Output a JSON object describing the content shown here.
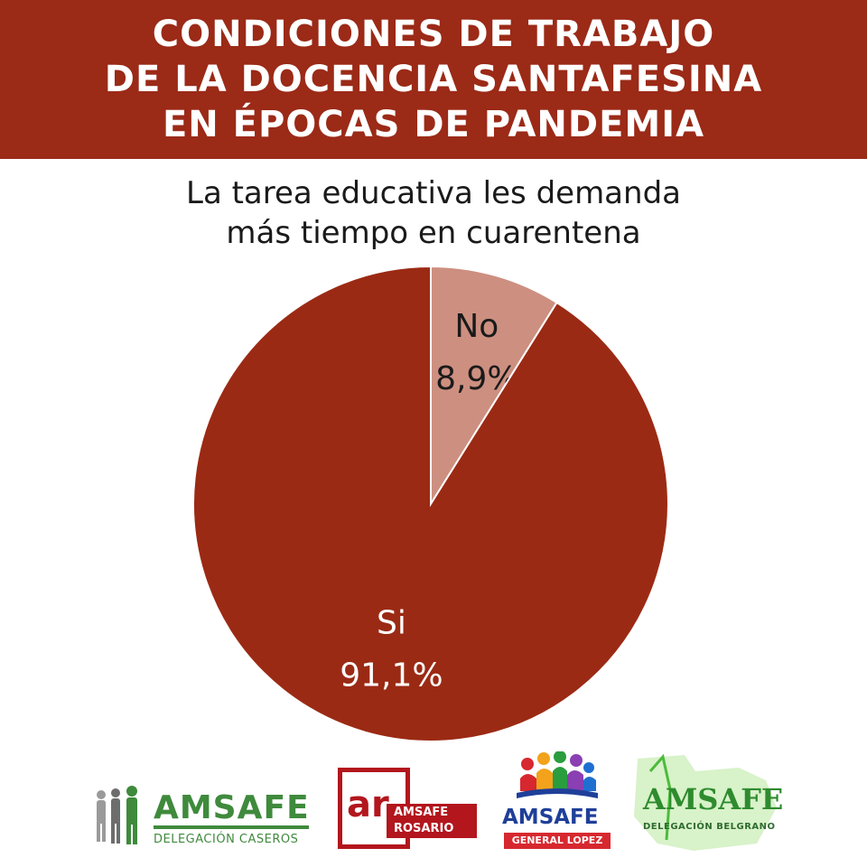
{
  "header": {
    "lines": [
      "CONDICIONES DE TRABAJO",
      "DE LA DOCENCIA SANTAFESINA",
      "EN ÉPOCAS DE PANDEMIA"
    ],
    "background": "#9b2a17"
  },
  "chart_data": {
    "type": "pie",
    "title": "La tarea educativa les demanda más tiempo en cuarentena",
    "title_lines": [
      "La tarea educativa les demanda",
      "más tiempo en cuarentena"
    ],
    "slices": [
      {
        "label": "No",
        "value": 8.9,
        "value_label": "8,9%",
        "color": "#cd8f80"
      },
      {
        "label": "Si",
        "value": 91.1,
        "value_label": "91,1%",
        "color": "#9b2a14"
      }
    ],
    "start": "12 o'clock, clockwise from No"
  },
  "logos": [
    {
      "name": "AMSAFE",
      "subtitle": "DELEGACIÓN CASEROS",
      "icon": "people-silhouettes-icon",
      "color": "#3f8a3c"
    },
    {
      "mark": "ar",
      "name": "AMSAFE",
      "subtitle": "ROSARIO",
      "color": "#b3161d"
    },
    {
      "name": "AMSAFE",
      "subtitle": "GENERAL LOPEZ",
      "icon": "people-book-icon",
      "color": "#1f3f99"
    },
    {
      "name": "AMSAFE",
      "subtitle": "DELEGACIÓN BELGRANO",
      "icon": "map-outline-icon",
      "color": "#2e8b2e"
    }
  ]
}
